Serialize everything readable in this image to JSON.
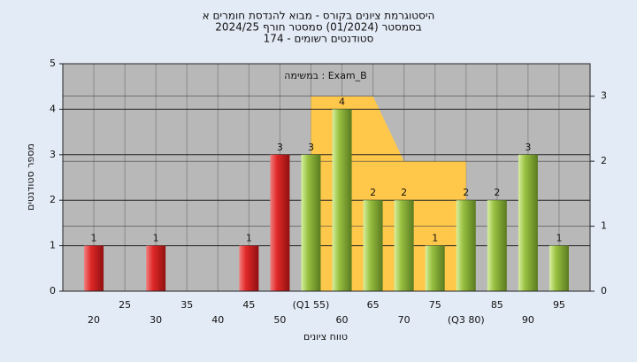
{
  "chart_data": {
    "type": "bar",
    "title_lines": [
      "היסטוגרמת ציונים בקורס - מבוא להנדסת חומרים א",
      "בסמסטר  (01/2024)  סמסטר חורף 2024/25",
      "סטודנטים רשומים - 174"
    ],
    "annotation": "במשימה : Exam_B",
    "ylabel": "מספר סטודנטים",
    "xlabel": "טווח ציונים",
    "x": [
      20,
      25,
      30,
      35,
      40,
      45,
      50,
      55,
      60,
      65,
      70,
      75,
      80,
      85,
      90,
      95
    ],
    "series": [
      {
        "color": "#e02828",
        "values": [
          1,
          null,
          1,
          null,
          null,
          1,
          3,
          null,
          null,
          null,
          null,
          null,
          null,
          null,
          null,
          null
        ]
      },
      {
        "color": "#98c040",
        "values": [
          null,
          null,
          null,
          null,
          null,
          null,
          null,
          3,
          4,
          2,
          2,
          1,
          2,
          2,
          3,
          1
        ]
      }
    ],
    "area": {
      "color": "#ffc84a",
      "axis": "y2",
      "x": [
        55,
        65,
        70,
        80
      ],
      "values": [
        3,
        3,
        2,
        2
      ]
    },
    "xlim": [
      15,
      100
    ],
    "xticks": [
      20,
      25,
      30,
      35,
      40,
      45,
      50,
      {
        "value": 55,
        "label": "(Q1 55)"
      },
      60,
      65,
      70,
      75,
      {
        "value": 80,
        "label": "(Q3 80)"
      },
      85,
      90,
      95
    ],
    "ylim": [
      0,
      5
    ],
    "yticks": [
      0,
      1,
      2,
      3,
      4,
      5
    ],
    "y2lim": [
      0,
      3.5
    ],
    "y2ticks": [
      0,
      1,
      2,
      3
    ],
    "grid": true
  }
}
